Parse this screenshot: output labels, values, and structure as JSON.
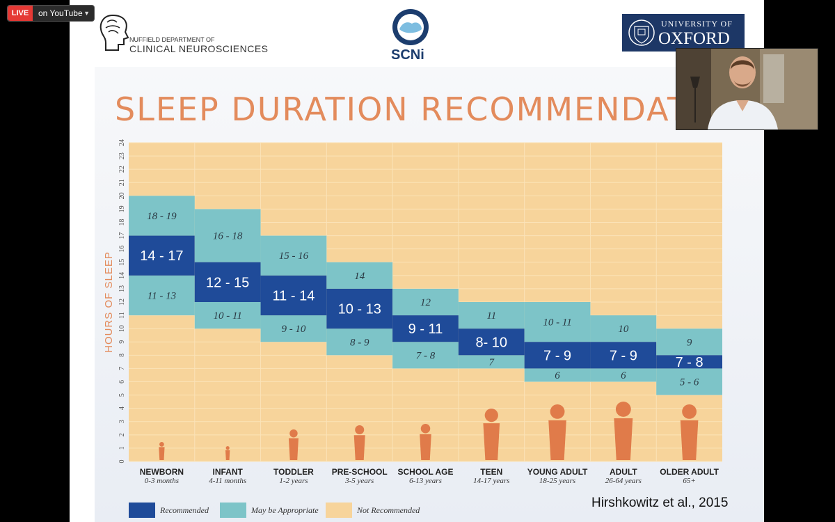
{
  "live": {
    "badge": "LIVE",
    "text": "on YouTube"
  },
  "header": {
    "ndcn_line1": "NUFFIELD DEPARTMENT OF",
    "ndcn_line2": "CLINICAL NEUROSCIENCES",
    "scni": "SCNi",
    "oxford_line1": "UNIVERSITY OF",
    "oxford_line2": "OXFORD"
  },
  "slide": {
    "title": "SLEEP DURATION RECOMMENDATIO",
    "citation": "Hirshkowitz et al., 2015"
  },
  "colors": {
    "recommended": "#1f4b99",
    "may": "#7dc4c8",
    "not": "#f7d49b",
    "grid": "#fbe3b8"
  },
  "chart_data": {
    "type": "bar",
    "ylabel": "HOURS OF SLEEP",
    "ylim": [
      0,
      24
    ],
    "yticks": [
      "0",
      "1",
      "2",
      "3",
      "4",
      "5",
      "6",
      "7",
      "8",
      "9",
      "10",
      "11",
      "12",
      "13",
      "14",
      "15",
      "16",
      "17",
      "18",
      "19",
      "20",
      "21",
      "22",
      "23",
      "24"
    ],
    "groups": [
      {
        "label": "NEWBORN",
        "range": "0-3 months",
        "may_low": [
          11,
          13
        ],
        "rec": [
          14,
          17
        ],
        "may_high": [
          18,
          19
        ],
        "may_low_text": "11 - 13",
        "rec_text": "14 - 17",
        "may_high_text": "18 - 19"
      },
      {
        "label": "INFANT",
        "range": "4-11 months",
        "may_low": [
          10,
          11
        ],
        "rec": [
          12,
          15
        ],
        "may_high": [
          16,
          18
        ],
        "may_low_text": "10 - 11",
        "rec_text": "12 - 15",
        "may_high_text": "16 - 18"
      },
      {
        "label": "TODDLER",
        "range": "1-2 years",
        "may_low": [
          9,
          10
        ],
        "rec": [
          11,
          14
        ],
        "may_high": [
          15,
          16
        ],
        "may_low_text": "9 - 10",
        "rec_text": "11 - 14",
        "may_high_text": "15 - 16"
      },
      {
        "label": "PRE-SCHOOL",
        "range": "3-5 years",
        "may_low": [
          8,
          9
        ],
        "rec": [
          10,
          13
        ],
        "may_high": [
          14,
          14
        ],
        "may_low_text": "8 - 9",
        "rec_text": "10 - 13",
        "may_high_text": "14"
      },
      {
        "label": "SCHOOL AGE",
        "range": "6-13 years",
        "may_low": [
          7,
          8
        ],
        "rec": [
          9,
          11
        ],
        "may_high": [
          12,
          12
        ],
        "may_low_text": "7 - 8",
        "rec_text": "9 - 11",
        "may_high_text": "12"
      },
      {
        "label": "TEEN",
        "range": "14-17 years",
        "may_low": [
          7,
          7
        ],
        "rec": [
          8,
          10
        ],
        "may_high": [
          11,
          11
        ],
        "may_low_text": "7",
        "rec_text": "8- 10",
        "may_high_text": "11"
      },
      {
        "label": "YOUNG ADULT",
        "range": "18-25 years",
        "may_low": [
          6,
          6
        ],
        "rec": [
          7,
          9
        ],
        "may_high": [
          10,
          11
        ],
        "may_low_text": "6",
        "rec_text": "7 - 9",
        "may_high_text": "10 - 11"
      },
      {
        "label": "ADULT",
        "range": "26-64 years",
        "may_low": [
          6,
          6
        ],
        "rec": [
          7,
          9
        ],
        "may_high": [
          10,
          10
        ],
        "may_low_text": "6",
        "rec_text": "7 - 9",
        "may_high_text": "10"
      },
      {
        "label": "OLDER ADULT",
        "range": "65+",
        "may_low": [
          5,
          6
        ],
        "rec": [
          7,
          8
        ],
        "may_high": [
          9,
          9
        ],
        "may_low_text": "5 - 6",
        "rec_text": "7 - 8",
        "may_high_text": "9"
      }
    ],
    "legend": [
      "Recommended",
      "May be Appropriate",
      "Not Recommended"
    ]
  }
}
